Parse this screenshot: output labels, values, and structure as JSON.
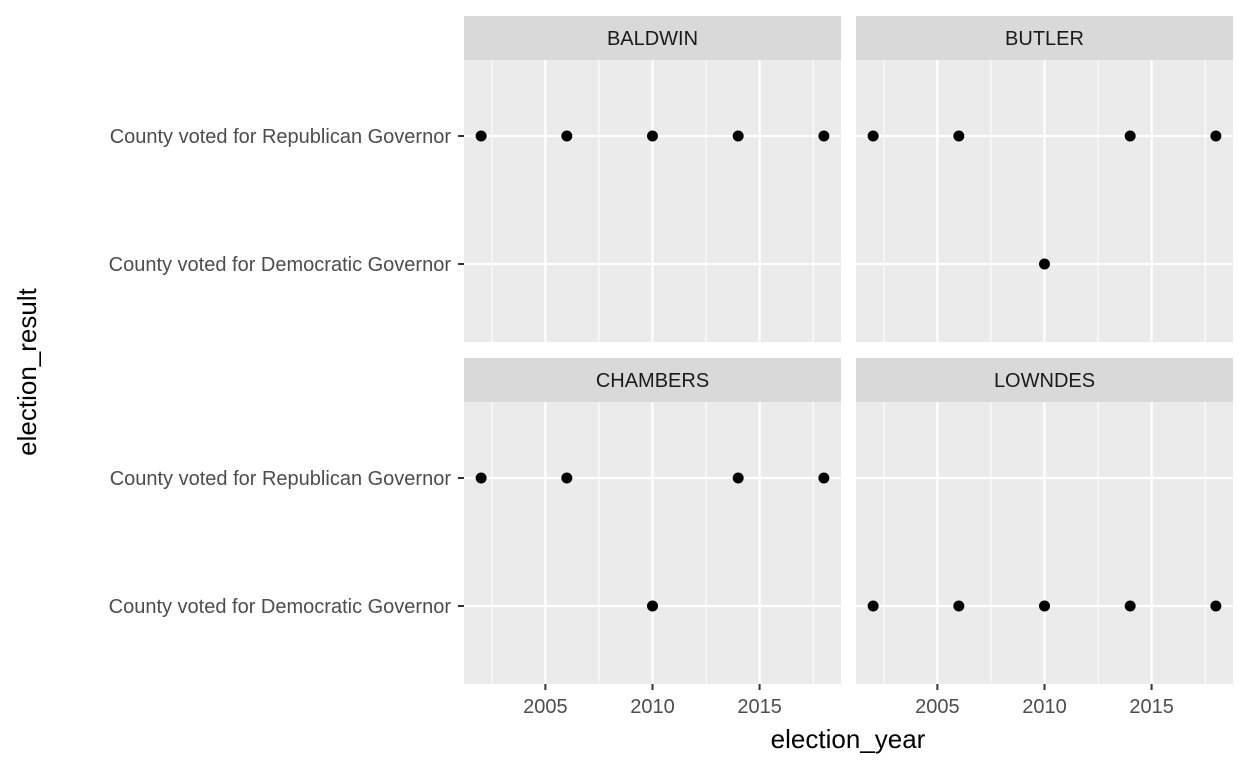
{
  "chart_data": {
    "type": "scatter",
    "layout": "facet_wrap 2x2",
    "xlabel": "election_year",
    "ylabel": "election_result",
    "x_ticks": [
      2005,
      2010,
      2015
    ],
    "x_tick_labels": [
      "2005",
      "2010",
      "2015"
    ],
    "xlim": [
      2001.2,
      2018.8
    ],
    "y_categories": [
      "County voted for Democratic Governor",
      "County voted for Republican Governor"
    ],
    "grid": true,
    "point_color": "#000000",
    "panel_background": "#ebebeb",
    "strip_background": "#d9d9d9",
    "facets": [
      {
        "name": "BALDWIN",
        "points": [
          {
            "x": 2002,
            "y": "County voted for Republican Governor"
          },
          {
            "x": 2006,
            "y": "County voted for Republican Governor"
          },
          {
            "x": 2010,
            "y": "County voted for Republican Governor"
          },
          {
            "x": 2014,
            "y": "County voted for Republican Governor"
          },
          {
            "x": 2018,
            "y": "County voted for Republican Governor"
          }
        ]
      },
      {
        "name": "BUTLER",
        "points": [
          {
            "x": 2002,
            "y": "County voted for Republican Governor"
          },
          {
            "x": 2006,
            "y": "County voted for Republican Governor"
          },
          {
            "x": 2010,
            "y": "County voted for Democratic Governor"
          },
          {
            "x": 2014,
            "y": "County voted for Republican Governor"
          },
          {
            "x": 2018,
            "y": "County voted for Republican Governor"
          }
        ]
      },
      {
        "name": "CHAMBERS",
        "points": [
          {
            "x": 2002,
            "y": "County voted for Republican Governor"
          },
          {
            "x": 2006,
            "y": "County voted for Republican Governor"
          },
          {
            "x": 2010,
            "y": "County voted for Democratic Governor"
          },
          {
            "x": 2014,
            "y": "County voted for Republican Governor"
          },
          {
            "x": 2018,
            "y": "County voted for Republican Governor"
          }
        ]
      },
      {
        "name": "LOWNDES",
        "points": [
          {
            "x": 2002,
            "y": "County voted for Democratic Governor"
          },
          {
            "x": 2006,
            "y": "County voted for Democratic Governor"
          },
          {
            "x": 2010,
            "y": "County voted for Democratic Governor"
          },
          {
            "x": 2014,
            "y": "County voted for Democratic Governor"
          },
          {
            "x": 2018,
            "y": "County voted for Democratic Governor"
          }
        ]
      }
    ]
  }
}
